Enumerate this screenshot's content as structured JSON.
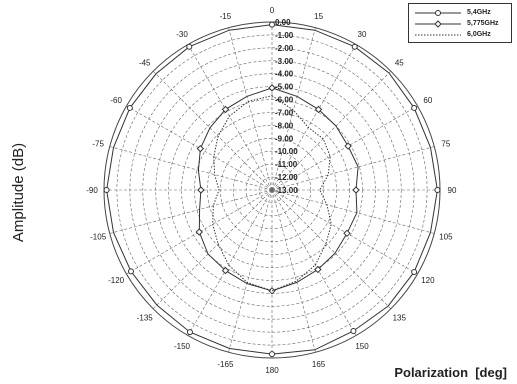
{
  "chart_data": {
    "type": "polar",
    "xlabel": "Polarization  [deg]",
    "ylabel": "Amplitude (dB)",
    "angle_ticks": [
      "0",
      "15",
      "30",
      "45",
      "60",
      "75",
      "90",
      "105",
      "120",
      "135",
      "150",
      "165",
      "180",
      "-165",
      "-150",
      "-135",
      "-120",
      "-105",
      "-90",
      "-75",
      "-60",
      "-45",
      "-30",
      "-15"
    ],
    "radial_ticks": [
      "0.00",
      "-1.00",
      "-2.00",
      "-3.00",
      "-4.00",
      "-5.00",
      "-6.00",
      "-7.00",
      "-8.00",
      "-9.00",
      "-10.00",
      "-11.00",
      "-12.00",
      "-13.00"
    ],
    "rlim": [
      -13,
      0
    ],
    "legend_position": "top-right",
    "colors": {
      "series": "#333333",
      "grid": "#666666"
    },
    "series": [
      {
        "name": "5,4GHz",
        "marker": "circle",
        "angles": [
          0,
          15,
          30,
          45,
          60,
          75,
          90,
          105,
          120,
          135,
          150,
          165,
          180,
          195,
          210,
          225,
          240,
          255,
          270,
          285,
          300,
          315,
          330,
          345
        ],
        "values": [
          -0.2,
          -0.2,
          -0.2,
          -0.2,
          -0.3,
          -0.3,
          -0.2,
          -0.3,
          -0.3,
          -0.3,
          -0.4,
          -0.2,
          -0.3,
          -0.3,
          -0.3,
          -0.4,
          -0.4,
          -0.3,
          -0.2,
          -0.3,
          -0.3,
          -0.3,
          -0.2,
          -0.2
        ]
      },
      {
        "name": "5,775GHz",
        "marker": "diamond",
        "angles": [
          0,
          15,
          30,
          45,
          60,
          75,
          90,
          105,
          120,
          135,
          150,
          165,
          180,
          195,
          210,
          225,
          240,
          255,
          270,
          285,
          300,
          315,
          330,
          345
        ],
        "values": [
          -5.1,
          -5.5,
          -5.8,
          -6.0,
          -6.2,
          -6.1,
          -6.5,
          -6.2,
          -6.3,
          -6.1,
          -5.9,
          -5.6,
          -5.2,
          -5.5,
          -5.8,
          -6.0,
          -6.5,
          -7.2,
          -7.5,
          -7.1,
          -6.6,
          -6.2,
          -5.8,
          -5.5
        ]
      },
      {
        "name": "6,0GHz",
        "marker": "none",
        "angles": [
          0,
          15,
          30,
          45,
          60,
          75,
          90,
          105,
          120,
          135,
          150,
          165,
          180,
          195,
          210,
          225,
          240,
          255,
          270,
          285,
          300,
          315,
          330,
          345
        ],
        "values": [
          -5.7,
          -6.6,
          -7.4,
          -7.4,
          -7.8,
          -8.5,
          -9.3,
          -8.6,
          -7.7,
          -7.1,
          -6.3,
          -5.7,
          -5.2,
          -5.6,
          -6.3,
          -7.1,
          -7.7,
          -8.3,
          -8.9,
          -8.4,
          -7.8,
          -7.1,
          -6.4,
          -5.9
        ]
      }
    ]
  }
}
